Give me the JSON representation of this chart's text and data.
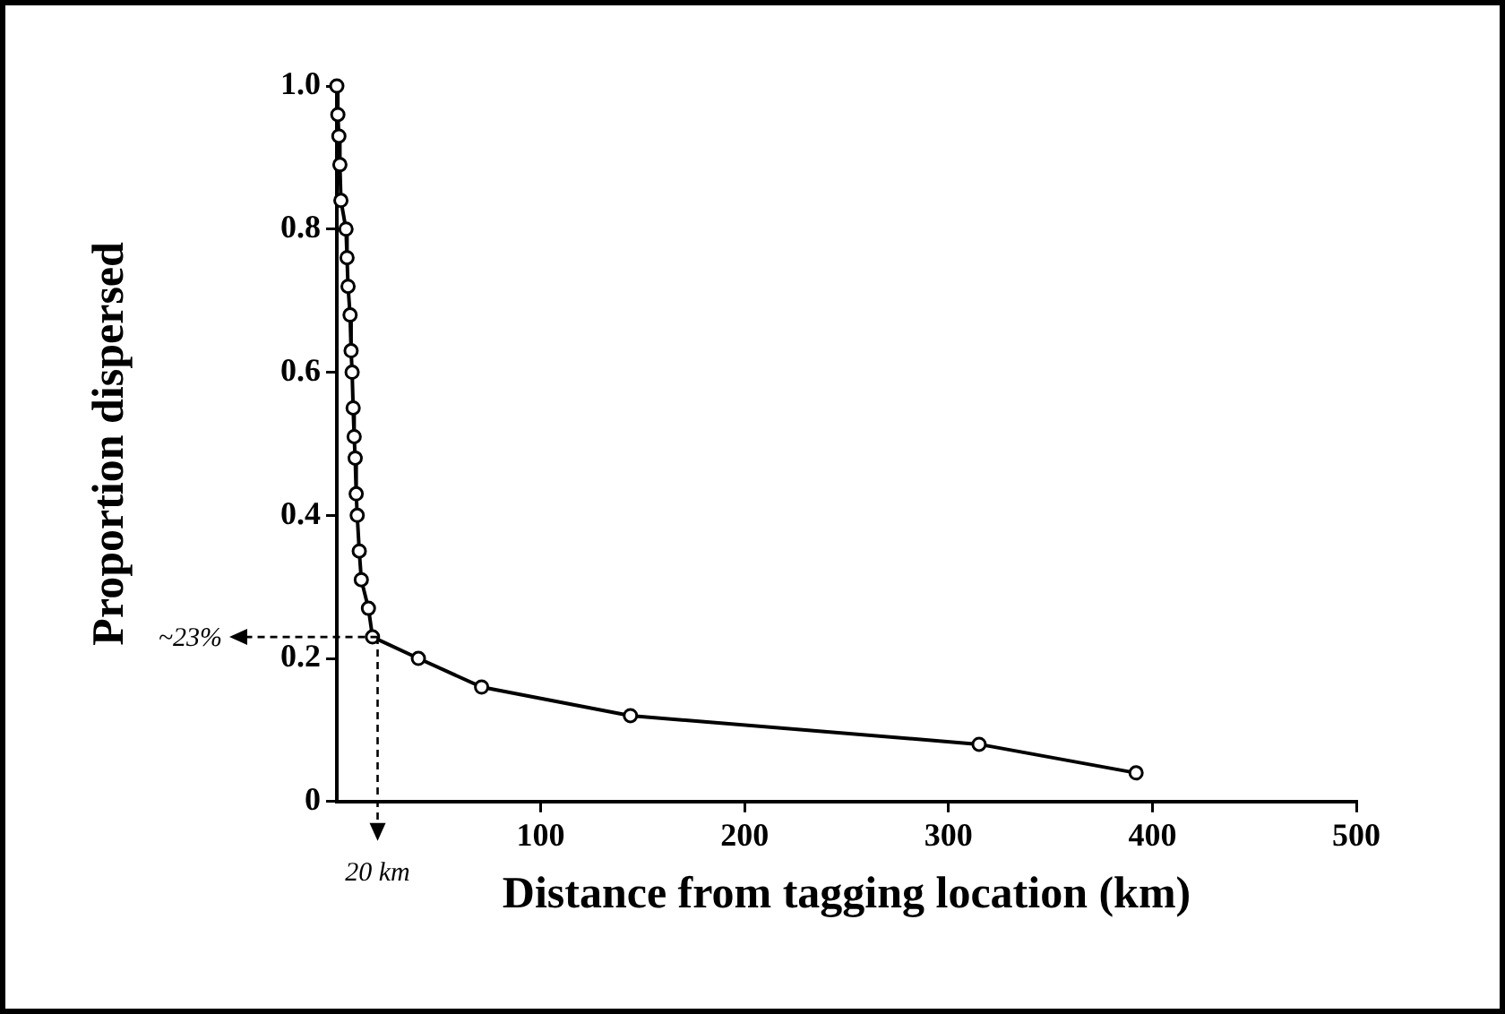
{
  "chart_data": {
    "type": "line",
    "xlabel": "Distance from tagging location (km)",
    "ylabel": "Proportion dispersed",
    "x": [
      0,
      0.5,
      1,
      1.5,
      2,
      4.5,
      5,
      5.5,
      6.5,
      7,
      7.5,
      8,
      8.5,
      9,
      9.5,
      10,
      11,
      12,
      15.5,
      17.5,
      40,
      71,
      144,
      315,
      392
    ],
    "series": [
      {
        "color": "#000000",
        "values": [
          1.0,
          0.96,
          0.93,
          0.89,
          0.84,
          0.8,
          0.76,
          0.72,
          0.68,
          0.63,
          0.6,
          0.55,
          0.51,
          0.48,
          0.43,
          0.4,
          0.35,
          0.31,
          0.27,
          0.23,
          0.2,
          0.16,
          0.12,
          0.08,
          0.04
        ]
      }
    ],
    "xlim": [
      0,
      500
    ],
    "xticks": [
      100,
      200,
      300,
      400,
      500
    ],
    "ylim": [
      0,
      1
    ],
    "yticks": [
      0,
      {
        "value": 0.2,
        "label": "0.2"
      },
      {
        "value": 0.4,
        "label": "0.4"
      },
      {
        "value": 0.6,
        "label": "0.6"
      },
      {
        "value": 0.8,
        "label": "0.8"
      },
      {
        "value": 1,
        "label": "1.0"
      }
    ],
    "ref_lines": [
      {
        "axis": "y",
        "value": 0.23,
        "label": "~23%",
        "line_style": "dashed"
      },
      {
        "axis": "x",
        "value": 20,
        "label": "20 km",
        "line_style": "dashed"
      }
    ],
    "grid": false,
    "legend": false,
    "marker": "circle",
    "line_style": "solid"
  }
}
